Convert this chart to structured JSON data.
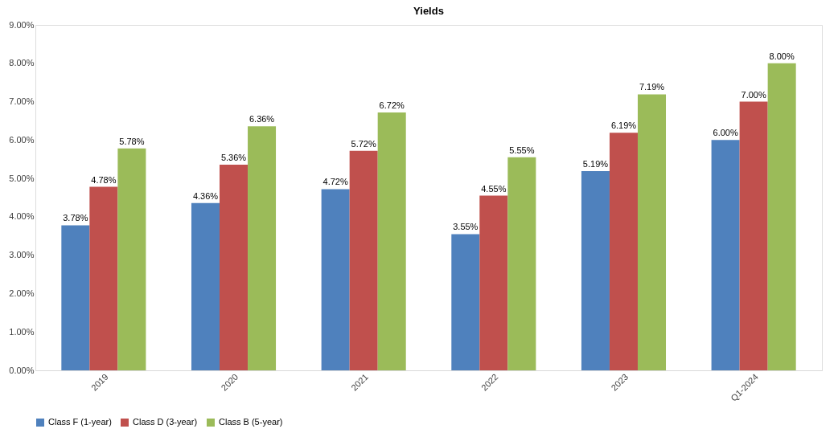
{
  "chart_data": {
    "type": "bar",
    "title": "Yields",
    "categories": [
      "2019",
      "2020",
      "2021",
      "2022",
      "2023",
      "Q1-2024"
    ],
    "series": [
      {
        "name": "Class F (1-year)",
        "color": "#4f81bd",
        "values": [
          3.78,
          4.36,
          4.72,
          3.55,
          5.19,
          6.0
        ],
        "value_labels": [
          "3.78%",
          "4.36%",
          "4.72%",
          "3.55%",
          "5.19%",
          "6.00%"
        ]
      },
      {
        "name": "Class D (3-year)",
        "color": "#c0504d",
        "values": [
          4.78,
          5.36,
          5.72,
          4.55,
          6.19,
          7.0
        ],
        "value_labels": [
          "4.78%",
          "5.36%",
          "5.72%",
          "4.55%",
          "6.19%",
          "7.00%"
        ]
      },
      {
        "name": "Class B (5-year)",
        "color": "#9bbb59",
        "values": [
          5.78,
          6.36,
          6.72,
          5.55,
          7.19,
          8.0
        ],
        "value_labels": [
          "5.78%",
          "6.36%",
          "6.72%",
          "5.55%",
          "7.19%",
          "8.00%"
        ]
      }
    ],
    "ylim": [
      0,
      9
    ],
    "yticks": [
      {
        "value": 0,
        "label": "0.00%"
      },
      {
        "value": 1,
        "label": "1.00%"
      },
      {
        "value": 2,
        "label": "2.00%"
      },
      {
        "value": 3,
        "label": "3.00%"
      },
      {
        "value": 4,
        "label": "4.00%"
      },
      {
        "value": 5,
        "label": "5.00%"
      },
      {
        "value": 6,
        "label": "6.00%"
      },
      {
        "value": 7,
        "label": "7.00%"
      },
      {
        "value": 8,
        "label": "8.00%"
      },
      {
        "value": 9,
        "label": "9.00%"
      }
    ],
    "grid": false,
    "legend": "bottom"
  }
}
